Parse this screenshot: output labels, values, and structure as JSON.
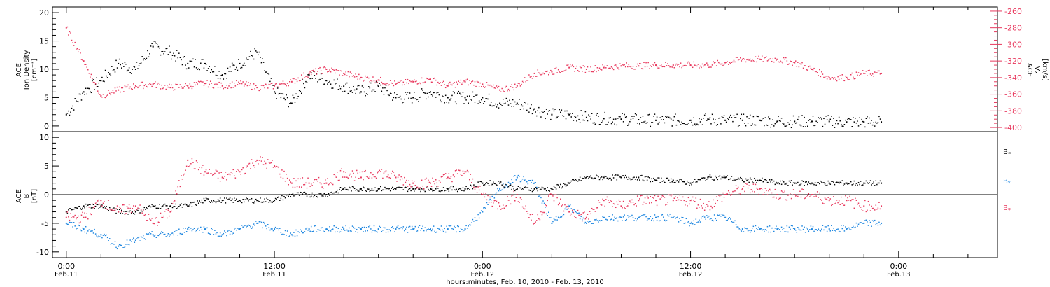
{
  "colors": {
    "black": "#000000",
    "red": "#e8395e",
    "blue": "#1f87e0"
  },
  "chart_data": [
    {
      "type": "scatter",
      "panel": "top",
      "ylabel_left": [
        "ACE",
        "Ion Density",
        "[cm⁻³]"
      ],
      "ylabel_right": [
        "ACE",
        "Vₓ",
        "[km/s]"
      ],
      "ylim_left": [
        -1,
        21
      ],
      "ylim_right": [
        -405,
        -255
      ],
      "y_ticks_left": [
        0,
        5,
        10,
        15,
        20
      ],
      "y_ticks_right": [
        -260,
        -280,
        -300,
        -320,
        -340,
        -360,
        -380,
        -400
      ],
      "x_unit": "hours since Feb. 11 00:00",
      "series": [
        {
          "color": "black",
          "axis": "left",
          "points": [
            [
              0,
              2
            ],
            [
              1,
              6
            ],
            [
              2,
              8
            ],
            [
              3,
              11
            ],
            [
              4,
              10
            ],
            [
              5,
              14
            ],
            [
              6,
              13
            ],
            [
              7,
              11
            ],
            [
              8,
              11
            ],
            [
              9,
              9
            ],
            [
              10,
              11
            ],
            [
              11,
              13
            ],
            [
              12,
              6
            ],
            [
              13,
              4
            ],
            [
              14,
              9
            ],
            [
              15,
              8
            ],
            [
              16,
              7
            ],
            [
              17,
              6
            ],
            [
              18,
              7
            ],
            [
              19,
              5
            ],
            [
              20,
              5
            ],
            [
              21,
              6
            ],
            [
              22,
              5
            ],
            [
              23,
              5
            ],
            [
              24,
              5
            ],
            [
              25,
              4
            ],
            [
              26,
              4
            ],
            [
              27,
              3
            ],
            [
              28,
              2
            ],
            [
              29,
              2
            ],
            [
              30,
              1.5
            ],
            [
              31,
              1.3
            ],
            [
              32,
              1.2
            ],
            [
              33,
              1.1
            ],
            [
              34,
              1
            ],
            [
              35,
              1
            ],
            [
              36,
              1
            ],
            [
              37,
              1.2
            ],
            [
              38,
              1
            ],
            [
              39,
              1
            ],
            [
              40,
              1
            ],
            [
              41,
              0.8
            ],
            [
              42,
              0.8
            ],
            [
              43,
              0.8
            ],
            [
              44,
              0.8
            ],
            [
              45,
              0.7
            ],
            [
              46,
              0.7
            ],
            [
              47,
              0.7
            ]
          ]
        },
        {
          "color": "red",
          "axis": "right",
          "points": [
            [
              0,
              -280
            ],
            [
              1,
              -320
            ],
            [
              2,
              -362
            ],
            [
              3,
              -355
            ],
            [
              4,
              -350
            ],
            [
              5,
              -348
            ],
            [
              6,
              -352
            ],
            [
              7,
              -350
            ],
            [
              8,
              -347
            ],
            [
              9,
              -350
            ],
            [
              10,
              -347
            ],
            [
              11,
              -352
            ],
            [
              12,
              -350
            ],
            [
              13,
              -345
            ],
            [
              14,
              -335
            ],
            [
              15,
              -330
            ],
            [
              16,
              -335
            ],
            [
              17,
              -340
            ],
            [
              18,
              -343
            ],
            [
              19,
              -348
            ],
            [
              20,
              -345
            ],
            [
              21,
              -342
            ],
            [
              22,
              -350
            ],
            [
              23,
              -345
            ],
            [
              24,
              -348
            ],
            [
              25,
              -355
            ],
            [
              26,
              -350
            ],
            [
              27,
              -335
            ],
            [
              28,
              -333
            ],
            [
              29,
              -328
            ],
            [
              30,
              -330
            ],
            [
              31,
              -328
            ],
            [
              32,
              -326
            ],
            [
              33,
              -326
            ],
            [
              34,
              -325
            ],
            [
              35,
              -325
            ],
            [
              36,
              -325
            ],
            [
              37,
              -325
            ],
            [
              38,
              -322
            ],
            [
              39,
              -318
            ],
            [
              40,
              -318
            ],
            [
              41,
              -318
            ],
            [
              42,
              -322
            ],
            [
              43,
              -330
            ],
            [
              44,
              -340
            ],
            [
              45,
              -340
            ],
            [
              46,
              -335
            ],
            [
              47,
              -335
            ]
          ]
        }
      ]
    },
    {
      "type": "scatter",
      "panel": "bottom",
      "ylabel_left": [
        "ACE",
        "B",
        "[nT]"
      ],
      "ylim": [
        -11,
        11
      ],
      "y_ticks": [
        10,
        5,
        0,
        -5,
        -10
      ],
      "zero_line": true,
      "legend": [
        {
          "label": "Bₓ",
          "color": "black"
        },
        {
          "label": "Bᵧ",
          "color": "blue"
        },
        {
          "label": "Bᵩ",
          "color": "red"
        }
      ],
      "x_unit": "hours since Feb. 11 00:00",
      "series": [
        {
          "color": "black",
          "points": [
            [
              0,
              -3
            ],
            [
              1,
              -2
            ],
            [
              2,
              -2
            ],
            [
              3,
              -3
            ],
            [
              4,
              -3
            ],
            [
              5,
              -2
            ],
            [
              6,
              -2
            ],
            [
              7,
              -2
            ],
            [
              8,
              -1
            ],
            [
              9,
              -1
            ],
            [
              10,
              -1
            ],
            [
              11,
              -1
            ],
            [
              12,
              -1
            ],
            [
              13,
              0
            ],
            [
              14,
              0
            ],
            [
              15,
              0
            ],
            [
              16,
              1
            ],
            [
              17,
              1
            ],
            [
              18,
              1
            ],
            [
              19,
              1
            ],
            [
              20,
              1
            ],
            [
              21,
              1
            ],
            [
              22,
              1
            ],
            [
              23,
              1
            ],
            [
              24,
              2
            ],
            [
              25,
              2
            ],
            [
              26,
              1
            ],
            [
              27,
              1
            ],
            [
              28,
              1
            ],
            [
              29,
              2
            ],
            [
              30,
              3
            ],
            [
              31,
              3
            ],
            [
              32,
              3
            ],
            [
              33,
              3
            ],
            [
              34,
              2.5
            ],
            [
              35,
              2.5
            ],
            [
              36,
              2
            ],
            [
              37,
              3
            ],
            [
              38,
              3
            ],
            [
              39,
              2.5
            ],
            [
              40,
              2.5
            ],
            [
              41,
              2
            ],
            [
              42,
              2
            ],
            [
              43,
              2
            ],
            [
              44,
              2
            ],
            [
              45,
              2
            ],
            [
              46,
              2
            ],
            [
              47,
              2
            ]
          ]
        },
        {
          "color": "blue",
          "points": [
            [
              0,
              -5
            ],
            [
              1,
              -6
            ],
            [
              2,
              -7
            ],
            [
              3,
              -9
            ],
            [
              4,
              -8
            ],
            [
              5,
              -7
            ],
            [
              6,
              -7
            ],
            [
              7,
              -6
            ],
            [
              8,
              -6
            ],
            [
              9,
              -7
            ],
            [
              10,
              -6
            ],
            [
              11,
              -5
            ],
            [
              12,
              -6
            ],
            [
              13,
              -7
            ],
            [
              14,
              -6
            ],
            [
              15,
              -6
            ],
            [
              16,
              -6
            ],
            [
              17,
              -6
            ],
            [
              18,
              -6
            ],
            [
              19,
              -6
            ],
            [
              20,
              -6
            ],
            [
              21,
              -6
            ],
            [
              22,
              -6
            ],
            [
              23,
              -6
            ],
            [
              24,
              -3
            ],
            [
              25,
              1
            ],
            [
              26,
              3
            ],
            [
              27,
              2
            ],
            [
              28,
              -5
            ],
            [
              29,
              -2
            ],
            [
              30,
              -5
            ],
            [
              31,
              -4
            ],
            [
              32,
              -4
            ],
            [
              33,
              -4
            ],
            [
              34,
              -4
            ],
            [
              35,
              -4
            ],
            [
              36,
              -5
            ],
            [
              37,
              -4
            ],
            [
              38,
              -4
            ],
            [
              39,
              -6
            ],
            [
              40,
              -6
            ],
            [
              41,
              -6
            ],
            [
              42,
              -6
            ],
            [
              43,
              -6
            ],
            [
              44,
              -6
            ],
            [
              45,
              -6
            ],
            [
              46,
              -5
            ],
            [
              47,
              -5
            ]
          ]
        },
        {
          "color": "red",
          "points": [
            [
              0,
              -4
            ],
            [
              1,
              -4
            ],
            [
              2,
              -1
            ],
            [
              3,
              -3
            ],
            [
              4,
              -2
            ],
            [
              5,
              -5
            ],
            [
              6,
              -3
            ],
            [
              7,
              6
            ],
            [
              8,
              4
            ],
            [
              9,
              3
            ],
            [
              10,
              4
            ],
            [
              11,
              6
            ],
            [
              12,
              5
            ],
            [
              13,
              2
            ],
            [
              14,
              2
            ],
            [
              15,
              2
            ],
            [
              16,
              4
            ],
            [
              17,
              3
            ],
            [
              18,
              4
            ],
            [
              19,
              3
            ],
            [
              20,
              2
            ],
            [
              21,
              2
            ],
            [
              22,
              3
            ],
            [
              23,
              4
            ],
            [
              24,
              0
            ],
            [
              25,
              -2
            ],
            [
              26,
              0
            ],
            [
              27,
              -5
            ],
            [
              28,
              0
            ],
            [
              29,
              -3
            ],
            [
              30,
              -4
            ],
            [
              31,
              -1
            ],
            [
              32,
              -2
            ],
            [
              33,
              -1
            ],
            [
              34,
              -1
            ],
            [
              35,
              -1
            ],
            [
              36,
              -1
            ],
            [
              37,
              -2
            ],
            [
              38,
              0
            ],
            [
              39,
              1
            ],
            [
              40,
              1
            ],
            [
              41,
              0
            ],
            [
              42,
              0
            ],
            [
              43,
              0
            ],
            [
              44,
              -1
            ],
            [
              45,
              -1
            ],
            [
              46,
              -2
            ],
            [
              47,
              -2
            ]
          ]
        }
      ]
    }
  ],
  "x_axis": {
    "ticks": [
      {
        "hour": 0,
        "time": "0:00",
        "date": "Feb.11"
      },
      {
        "hour": 12,
        "time": "12:00",
        "date": "Feb.11"
      },
      {
        "hour": 24,
        "time": "0:00",
        "date": "Feb.12"
      },
      {
        "hour": 36,
        "time": "12:00",
        "date": "Feb.12"
      },
      {
        "hour": 48,
        "time": "0:00",
        "date": "Feb.13"
      }
    ],
    "xlim": [
      -0.8,
      53.7
    ],
    "title": "hours:minutes, Feb. 10, 2010 - Feb. 13, 2010"
  }
}
